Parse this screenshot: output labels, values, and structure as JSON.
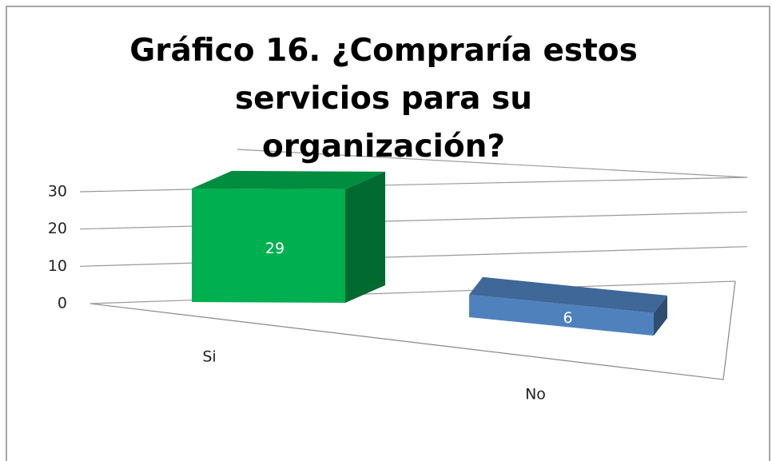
{
  "chart_data": {
    "type": "bar3d",
    "title": "Gráfico 16. ¿Compraría estos servicios para su organización?",
    "categories": [
      "Si",
      "No"
    ],
    "series": [
      {
        "name": null,
        "values": [
          29,
          6
        ],
        "colors": [
          "#00b050",
          "#4f81bd"
        ]
      }
    ],
    "ylim": [
      0,
      30
    ],
    "yticks": [
      0,
      10,
      20,
      30
    ],
    "grid": true
  }
}
